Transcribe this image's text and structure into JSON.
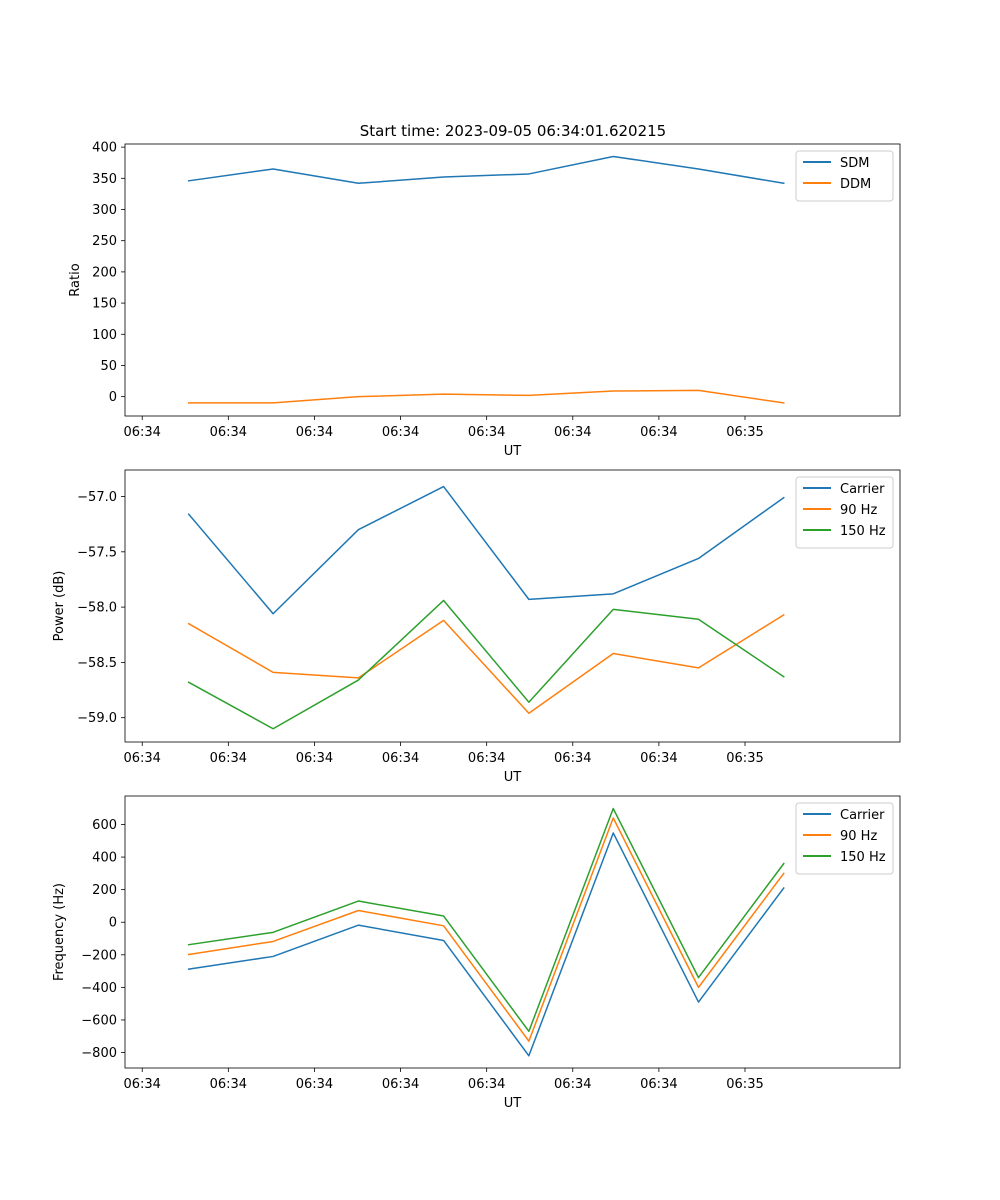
{
  "figure": {
    "title": "Start time: 2023-09-05 06:34:01.620215"
  },
  "chart_data": [
    {
      "type": "line",
      "ylabel": "Ratio",
      "xlabel": "UT",
      "xlim": [
        0,
        9
      ],
      "ylim": [
        -31,
        405
      ],
      "xtick_labels": [
        "06:34",
        "06:34",
        "06:34",
        "06:34",
        "06:34",
        "06:34",
        "06:34",
        "06:35"
      ],
      "ytick_values": [
        0,
        50,
        100,
        150,
        200,
        250,
        300,
        350,
        400
      ],
      "ytick_labels": [
        "0",
        "50",
        "100",
        "150",
        "200",
        "250",
        "300",
        "350",
        "400"
      ],
      "x": [
        0.74,
        1.72,
        2.71,
        3.7,
        4.69,
        5.67,
        6.66,
        7.65
      ],
      "series": [
        {
          "name": "SDM",
          "color": "#1f77b4",
          "values": [
            346,
            365,
            342,
            352,
            357,
            385,
            365,
            342
          ]
        },
        {
          "name": "DDM",
          "color": "#ff7f0e",
          "values": [
            -10,
            -10,
            0,
            4,
            2,
            9,
            10,
            -10
          ]
        }
      ],
      "legend": "top-right"
    },
    {
      "type": "line",
      "ylabel": "Power (dB)",
      "xlabel": "UT",
      "xlim": [
        0,
        9
      ],
      "ylim": [
        -59.22,
        -56.76
      ],
      "xtick_labels": [
        "06:34",
        "06:34",
        "06:34",
        "06:34",
        "06:34",
        "06:34",
        "06:34",
        "06:35"
      ],
      "ytick_values": [
        -59.0,
        -58.5,
        -58.0,
        -57.5,
        -57.0
      ],
      "ytick_labels": [
        "−59.0",
        "−58.5",
        "−58.0",
        "−57.5",
        "−57.0"
      ],
      "x": [
        0.74,
        1.72,
        2.71,
        3.7,
        4.69,
        5.67,
        6.66,
        7.65
      ],
      "series": [
        {
          "name": "Carrier",
          "color": "#1f77b4",
          "values": [
            -57.16,
            -58.06,
            -57.3,
            -56.91,
            -57.93,
            -57.88,
            -57.56,
            -57.01
          ]
        },
        {
          "name": "90 Hz",
          "color": "#ff7f0e",
          "values": [
            -58.15,
            -58.59,
            -58.64,
            -58.12,
            -58.96,
            -58.42,
            -58.55,
            -58.07
          ]
        },
        {
          "name": "150 Hz",
          "color": "#2ca02c",
          "values": [
            -58.68,
            -59.1,
            -58.66,
            -57.94,
            -58.86,
            -58.02,
            -58.11,
            -58.63
          ]
        }
      ],
      "legend": "top-right"
    },
    {
      "type": "line",
      "ylabel": "Frequency (Hz)",
      "xlabel": "UT",
      "xlim": [
        0,
        9
      ],
      "ylim": [
        -895,
        775
      ],
      "xtick_labels": [
        "06:34",
        "06:34",
        "06:34",
        "06:34",
        "06:34",
        "06:34",
        "06:34",
        "06:35"
      ],
      "ytick_values": [
        -800,
        -600,
        -400,
        -200,
        0,
        200,
        400,
        600
      ],
      "ytick_labels": [
        "−800",
        "−600",
        "−400",
        "−200",
        "0",
        "200",
        "400",
        "600"
      ],
      "x": [
        0.74,
        1.72,
        2.71,
        3.7,
        4.69,
        5.67,
        6.66,
        7.65
      ],
      "series": [
        {
          "name": "Carrier",
          "color": "#1f77b4",
          "values": [
            -288,
            -210,
            -18,
            -112,
            -820,
            548,
            -490,
            210
          ]
        },
        {
          "name": "90 Hz",
          "color": "#ff7f0e",
          "values": [
            -198,
            -118,
            72,
            -22,
            -730,
            640,
            -400,
            300
          ]
        },
        {
          "name": "150 Hz",
          "color": "#2ca02c",
          "values": [
            -138,
            -62,
            130,
            38,
            -670,
            698,
            -340,
            360
          ]
        }
      ],
      "legend": "top-right"
    }
  ]
}
